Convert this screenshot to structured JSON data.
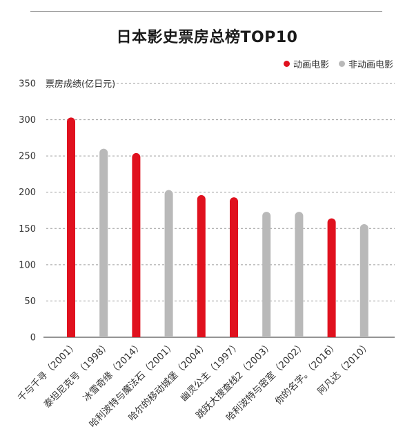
{
  "chart_data": {
    "type": "bar",
    "title": "日本影史票房总榜TOP10",
    "ylabel": "票房成绩(亿日元)",
    "xlabel": "",
    "ylim": [
      0,
      350
    ],
    "yticks": [
      0,
      50,
      100,
      150,
      200,
      250,
      300,
      350
    ],
    "grid": true,
    "legend_position": "top-right",
    "legend": [
      {
        "name": "动画电影",
        "color": "#e0111e"
      },
      {
        "name": "非动画电影",
        "color": "#b9b9b9"
      }
    ],
    "categories": [
      "千与千寻（2001）",
      "泰坦尼克号（1998）",
      "冰雪奇缘（2014）",
      "哈利波特与魔法石（2001）",
      "哈尔的移动城堡（2004）",
      "幽灵公主（1997）",
      "跳跃大搜查线2（2003）",
      "哈利波特与密室（2002）",
      "你的名字。（2016）",
      "阿凡达（2010）"
    ],
    "values": [
      303,
      260,
      254,
      203,
      196,
      193,
      173,
      173,
      164,
      156
    ],
    "animated": [
      true,
      false,
      true,
      false,
      true,
      true,
      false,
      false,
      true,
      false
    ]
  }
}
